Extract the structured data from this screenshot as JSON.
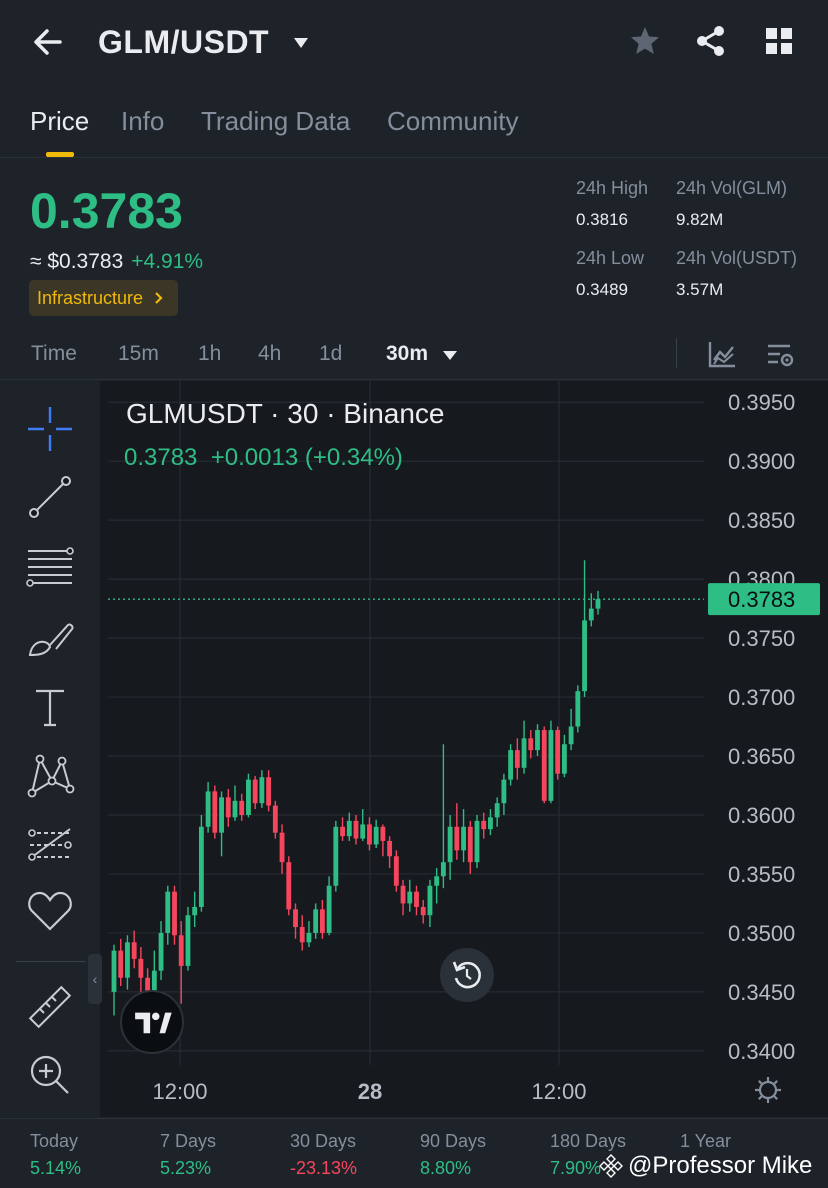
{
  "header": {
    "pair": "GLM/USDT",
    "icons": [
      "back-arrow-icon",
      "caret-down-icon",
      "star-icon",
      "share-icon",
      "grid-icon"
    ]
  },
  "tabs": [
    {
      "label": "Price",
      "active": true
    },
    {
      "label": "Info",
      "active": false
    },
    {
      "label": "Trading Data",
      "active": false
    },
    {
      "label": "Community",
      "active": false
    }
  ],
  "price": {
    "last": "0.3783",
    "usd": "≈ $0.3783",
    "change_pct": "+4.91%",
    "category": "Infrastructure"
  },
  "stats": {
    "high_label": "24h High",
    "high_value": "0.3816",
    "low_label": "24h Low",
    "low_value": "0.3489",
    "vol_base_label": "24h Vol(GLM)",
    "vol_base_value": "9.82M",
    "vol_quote_label": "24h Vol(USDT)",
    "vol_quote_value": "3.57M"
  },
  "intervals": {
    "label": "Time",
    "options": [
      "15m",
      "1h",
      "4h",
      "1d"
    ],
    "selected": "30m"
  },
  "chart": {
    "symbol_line": "GLMUSDT · 30 · Binance",
    "last": "0.3783",
    "change": "+0.0013",
    "change_pct": "(+0.34%)",
    "price_tag": "0.3783"
  },
  "chart_data": {
    "type": "candlestick",
    "y_ticks": [
      "0.3950",
      "0.3900",
      "0.3850",
      "0.3800",
      "0.3750",
      "0.3700",
      "0.3650",
      "0.3600",
      "0.3550",
      "0.3500",
      "0.3450",
      "0.3400"
    ],
    "x_ticks": [
      "12:00",
      "28",
      "12:00"
    ],
    "ylim": [
      0.3388,
      0.3968
    ],
    "last_price_line": 0.3783,
    "candles": [
      [
        0.345,
        0.3485,
        0.349,
        0.343
      ],
      [
        0.3485,
        0.3462,
        0.3495,
        0.3455
      ],
      [
        0.3462,
        0.3492,
        0.3498,
        0.3452
      ],
      [
        0.3492,
        0.3478,
        0.3502,
        0.347
      ],
      [
        0.3478,
        0.3462,
        0.3488,
        0.345
      ],
      [
        0.3462,
        0.3438,
        0.347,
        0.343
      ],
      [
        0.3438,
        0.3468,
        0.3485,
        0.3432
      ],
      [
        0.3468,
        0.35,
        0.351,
        0.346
      ],
      [
        0.35,
        0.3535,
        0.354,
        0.349
      ],
      [
        0.3535,
        0.3498,
        0.354,
        0.349
      ],
      [
        0.3498,
        0.3472,
        0.351,
        0.344
      ],
      [
        0.3472,
        0.3515,
        0.3522,
        0.3468
      ],
      [
        0.3515,
        0.3522,
        0.3535,
        0.3505
      ],
      [
        0.3522,
        0.359,
        0.36,
        0.3518
      ],
      [
        0.359,
        0.362,
        0.3628,
        0.3585
      ],
      [
        0.362,
        0.3585,
        0.3625,
        0.358
      ],
      [
        0.3585,
        0.3615,
        0.362,
        0.3565
      ],
      [
        0.3615,
        0.3598,
        0.3622,
        0.359
      ],
      [
        0.3598,
        0.3612,
        0.3625,
        0.3595
      ],
      [
        0.3612,
        0.36,
        0.3618,
        0.3595
      ],
      [
        0.36,
        0.363,
        0.3635,
        0.3598
      ],
      [
        0.363,
        0.361,
        0.3633,
        0.3605
      ],
      [
        0.361,
        0.3632,
        0.3638,
        0.3606
      ],
      [
        0.3632,
        0.3608,
        0.3638,
        0.3603
      ],
      [
        0.3608,
        0.3585,
        0.3612,
        0.358
      ],
      [
        0.3585,
        0.356,
        0.3592,
        0.355
      ],
      [
        0.356,
        0.352,
        0.3565,
        0.3515
      ],
      [
        0.352,
        0.3505,
        0.3525,
        0.3495
      ],
      [
        0.3505,
        0.3492,
        0.3515,
        0.3485
      ],
      [
        0.3492,
        0.35,
        0.351,
        0.3488
      ],
      [
        0.35,
        0.352,
        0.3525,
        0.3495
      ],
      [
        0.352,
        0.35,
        0.3528,
        0.3495
      ],
      [
        0.35,
        0.354,
        0.3548,
        0.3498
      ],
      [
        0.354,
        0.359,
        0.3595,
        0.3535
      ],
      [
        0.359,
        0.3582,
        0.3598,
        0.3578
      ],
      [
        0.3582,
        0.3595,
        0.3602,
        0.3578
      ],
      [
        0.3595,
        0.358,
        0.36,
        0.3575
      ],
      [
        0.358,
        0.3592,
        0.3605,
        0.3578
      ],
      [
        0.3592,
        0.3575,
        0.3598,
        0.357
      ],
      [
        0.3575,
        0.359,
        0.3596,
        0.3572
      ],
      [
        0.359,
        0.3578,
        0.3592,
        0.3565
      ],
      [
        0.3578,
        0.3565,
        0.3582,
        0.3555
      ],
      [
        0.3565,
        0.354,
        0.357,
        0.3535
      ],
      [
        0.354,
        0.3525,
        0.3545,
        0.3515
      ],
      [
        0.3525,
        0.3535,
        0.3545,
        0.3518
      ],
      [
        0.3535,
        0.3522,
        0.354,
        0.3515
      ],
      [
        0.3522,
        0.3515,
        0.3528,
        0.3508
      ],
      [
        0.3515,
        0.354,
        0.3545,
        0.3505
      ],
      [
        0.354,
        0.3548,
        0.3555,
        0.3525
      ],
      [
        0.3548,
        0.356,
        0.366,
        0.3538
      ],
      [
        0.356,
        0.359,
        0.36,
        0.3545
      ],
      [
        0.359,
        0.357,
        0.361,
        0.3562
      ],
      [
        0.357,
        0.359,
        0.3605,
        0.356
      ],
      [
        0.359,
        0.356,
        0.3595,
        0.355
      ],
      [
        0.356,
        0.3595,
        0.36,
        0.3555
      ],
      [
        0.3595,
        0.3588,
        0.3602,
        0.358
      ],
      [
        0.3588,
        0.3598,
        0.3605,
        0.3583
      ],
      [
        0.3598,
        0.361,
        0.3615,
        0.359
      ],
      [
        0.361,
        0.363,
        0.3635,
        0.36
      ],
      [
        0.363,
        0.3655,
        0.366,
        0.3625
      ],
      [
        0.3655,
        0.364,
        0.3665,
        0.363
      ],
      [
        0.364,
        0.3665,
        0.368,
        0.3635
      ],
      [
        0.3665,
        0.3655,
        0.3672,
        0.3648
      ],
      [
        0.3655,
        0.3672,
        0.3677,
        0.365
      ],
      [
        0.3672,
        0.3612,
        0.3675,
        0.361
      ],
      [
        0.3612,
        0.3672,
        0.368,
        0.361
      ],
      [
        0.3672,
        0.3635,
        0.3675,
        0.363
      ],
      [
        0.3635,
        0.366,
        0.3668,
        0.3632
      ],
      [
        0.366,
        0.3675,
        0.369,
        0.3655
      ],
      [
        0.3675,
        0.3705,
        0.371,
        0.367
      ],
      [
        0.3705,
        0.3765,
        0.3816,
        0.37
      ],
      [
        0.3765,
        0.3775,
        0.3788,
        0.376
      ],
      [
        0.3775,
        0.3783,
        0.379,
        0.377
      ]
    ]
  },
  "performance": [
    {
      "label": "Today",
      "value": "5.14%",
      "dir": "up"
    },
    {
      "label": "7 Days",
      "value": "5.23%",
      "dir": "up"
    },
    {
      "label": "30 Days",
      "value": "-23.13%",
      "dir": "down"
    },
    {
      "label": "90 Days",
      "value": "8.80%",
      "dir": "up"
    },
    {
      "label": "180 Days",
      "value": "7.90%",
      "dir": "up"
    },
    {
      "label": "1 Year",
      "value": "",
      "dir": "up"
    }
  ],
  "watermark": "@Professor Mike",
  "colors": {
    "up": "#2ebd85",
    "down": "#f6465d",
    "accent": "#f0b90b",
    "background": "#1e2329",
    "chart_background": "#161a1e"
  }
}
